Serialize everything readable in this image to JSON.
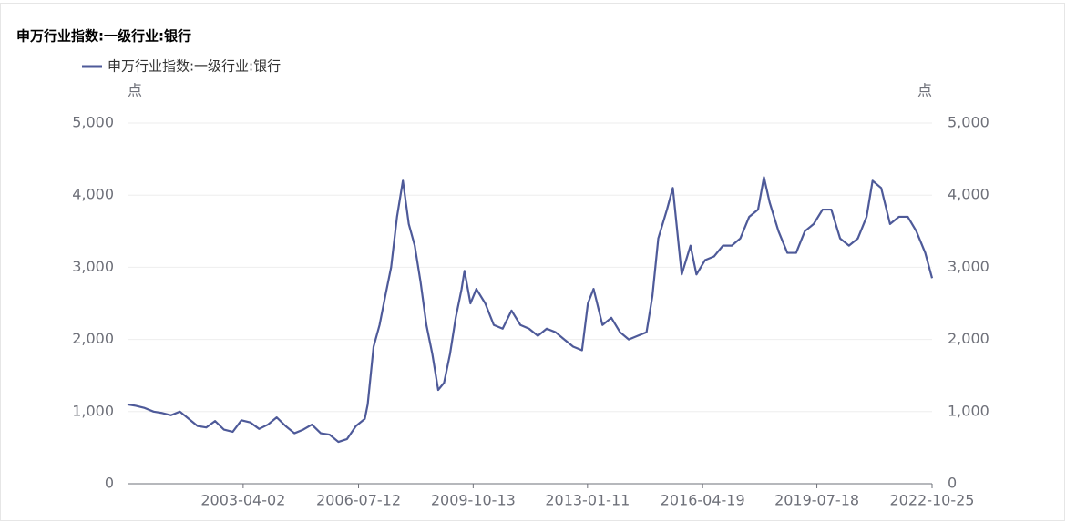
{
  "chart_data": {
    "type": "line",
    "title": "申万行业指数:一级行业:银行",
    "y_unit": "点",
    "y2_unit": "点",
    "x": [
      "1999-12-20",
      "2000-03-15",
      "2000-06-15",
      "2000-09-15",
      "2000-12-15",
      "2001-03-15",
      "2001-06-15",
      "2001-09-15",
      "2001-12-15",
      "2002-03-15",
      "2002-06-15",
      "2002-09-15",
      "2002-12-15",
      "2003-03-15",
      "2003-06-15",
      "2003-09-15",
      "2003-12-15",
      "2004-03-15",
      "2004-06-15",
      "2004-09-15",
      "2004-12-15",
      "2005-03-15",
      "2005-06-15",
      "2005-09-15",
      "2005-12-15",
      "2006-03-15",
      "2006-06-15",
      "2006-09-15",
      "2006-10-15",
      "2006-12-15",
      "2007-02-15",
      "2007-04-15",
      "2007-06-15",
      "2007-08-15",
      "2007-10-15",
      "2007-12-15",
      "2008-02-15",
      "2008-04-15",
      "2008-06-15",
      "2008-08-15",
      "2008-10-15",
      "2008-12-15",
      "2009-02-15",
      "2009-04-15",
      "2009-06-15",
      "2009-07-15",
      "2009-09-15",
      "2009-11-15",
      "2010-02-15",
      "2010-05-15",
      "2010-08-15",
      "2010-11-15",
      "2011-02-15",
      "2011-05-15",
      "2011-08-15",
      "2011-11-15",
      "2012-02-15",
      "2012-05-15",
      "2012-08-15",
      "2012-11-15",
      "2013-01-15",
      "2013-03-15",
      "2013-06-15",
      "2013-09-15",
      "2013-12-15",
      "2014-03-15",
      "2014-06-15",
      "2014-09-15",
      "2014-11-15",
      "2015-01-15",
      "2015-04-15",
      "2015-06-15",
      "2015-08-15",
      "2015-09-15",
      "2015-12-15",
      "2016-02-15",
      "2016-05-15",
      "2016-08-15",
      "2016-11-15",
      "2017-02-15",
      "2017-05-15",
      "2017-08-15",
      "2017-11-15",
      "2018-01-15",
      "2018-03-15",
      "2018-06-15",
      "2018-09-15",
      "2018-12-15",
      "2019-03-15",
      "2019-06-15",
      "2019-09-15",
      "2019-12-15",
      "2020-03-15",
      "2020-06-15",
      "2020-09-15",
      "2020-12-15",
      "2021-02-15",
      "2021-05-15",
      "2021-08-15",
      "2021-11-15",
      "2022-02-15",
      "2022-05-15",
      "2022-08-15",
      "2022-10-25"
    ],
    "series": [
      {
        "name": "申万行业指数:一级行业:银行",
        "color": "#4e5a99",
        "values": [
          1100,
          1080,
          1050,
          1000,
          980,
          950,
          1000,
          900,
          800,
          780,
          870,
          750,
          720,
          880,
          850,
          760,
          820,
          920,
          800,
          700,
          750,
          820,
          700,
          680,
          580,
          620,
          800,
          900,
          1100,
          1900,
          2200,
          2600,
          3000,
          3700,
          4200,
          3600,
          3300,
          2800,
          2200,
          1800,
          1300,
          1400,
          1800,
          2300,
          2700,
          2950,
          2500,
          2700,
          2500,
          2200,
          2150,
          2400,
          2200,
          2150,
          2050,
          2150,
          2100,
          2000,
          1900,
          1850,
          2500,
          2700,
          2200,
          2300,
          2100,
          2000,
          2050,
          2100,
          2600,
          3400,
          3800,
          4100,
          3300,
          2900,
          3300,
          2900,
          3100,
          3150,
          3300,
          3300,
          3400,
          3700,
          3800,
          4250,
          3900,
          3500,
          3200,
          3200,
          3500,
          3600,
          3800,
          3800,
          3400,
          3300,
          3400,
          3700,
          4200,
          4100,
          3600,
          3700,
          3700,
          3500,
          3200,
          2850
        ]
      }
    ],
    "xlim": [
      "1999-12-20",
      "2022-10-25"
    ],
    "xticks": [
      "2003-04-02",
      "2006-07-12",
      "2009-10-13",
      "2013-01-11",
      "2016-04-19",
      "2019-07-18",
      "2022-10-25"
    ],
    "ylim": [
      0,
      5000
    ],
    "yticks": [
      0,
      {
        "value": 1000,
        "label": "1,000"
      },
      {
        "value": 2000,
        "label": "2,000"
      },
      {
        "value": 3000,
        "label": "3,000"
      },
      {
        "value": 4000,
        "label": "4,000"
      },
      {
        "value": 5000,
        "label": "5,000"
      }
    ],
    "y2lim": [
      0,
      5000
    ],
    "y2ticks": [
      0,
      {
        "value": 1000,
        "label": "1,000"
      },
      {
        "value": 2000,
        "label": "2,000"
      },
      {
        "value": 3000,
        "label": "3,000"
      },
      {
        "value": 4000,
        "label": "4,000"
      },
      {
        "value": 5000,
        "label": "5,000"
      }
    ],
    "grid": true
  }
}
